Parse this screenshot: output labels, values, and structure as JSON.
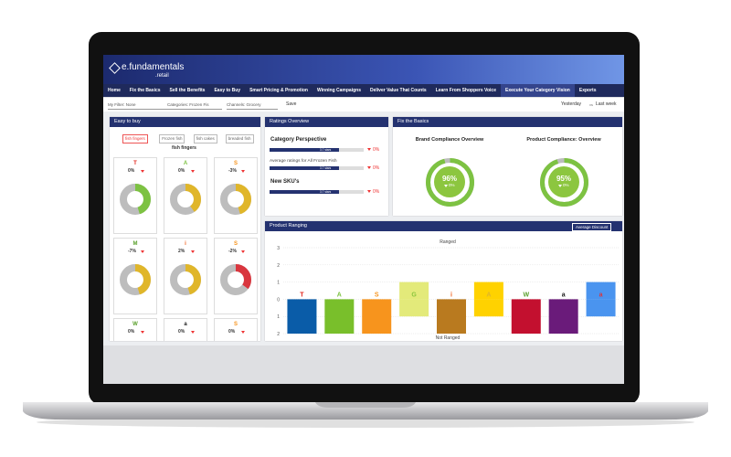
{
  "header": {
    "brand": "e.fundamentals",
    "sub": ".retail"
  },
  "nav": [
    "Home",
    "Fix the Basics",
    "Sell the Benefits",
    "Easy to Buy",
    "Smart Pricing & Promotion",
    "Winning Campaigns",
    "Deliver Value That Counts",
    "Learn From Shoppers Voice",
    "Execute Your Category Vision",
    "Exports"
  ],
  "filters": {
    "filter": "My Filter: None",
    "category": "Categories: Frozen Fis",
    "channel": "Channels: Grocery",
    "save": "Save",
    "period": "Yesterday",
    "vs": "vs",
    "compare": "Last week"
  },
  "easy_to_buy": {
    "title": "Easy to buy",
    "tabs": [
      "fish fingers",
      "Frozen fish",
      "fish cakes",
      "breaded fish"
    ],
    "search": "fish fingers",
    "cards": [
      {
        "icon": "T",
        "icon_color": "#e2231a",
        "change": "0%",
        "share": 45,
        "color": "#7dc242"
      },
      {
        "icon": "A",
        "icon_color": "#7dc242",
        "change": "0%",
        "share": 40,
        "color": "#e0b62a"
      },
      {
        "icon": "S",
        "icon_color": "#f7941d",
        "change": "-3%",
        "share": 45,
        "color": "#e0b62a"
      },
      {
        "icon": "M",
        "icon_color": "#5aa02c",
        "change": "-7%",
        "share": 45,
        "color": "#e0b62a"
      },
      {
        "icon": "i",
        "icon_color": "#f26522",
        "change": "2%",
        "share": 45,
        "color": "#e0b62a"
      },
      {
        "icon": "S",
        "icon_color": "#f7941d",
        "change": "-2%",
        "share": 35,
        "color": "#d9363e"
      },
      {
        "icon": "W",
        "icon_color": "#5aa02c",
        "change": "0%"
      },
      {
        "icon": "a",
        "icon_color": "#222222",
        "change": "0%"
      },
      {
        "icon": "S",
        "icon_color": "#f7941d",
        "change": "0%"
      }
    ]
  },
  "ratings": {
    "title": "Ratings Overview",
    "xlim": [
      0,
      5
    ],
    "sections": [
      {
        "heading": "Category Perspective",
        "rows": [
          {
            "stars": 3.7,
            "stars_label": "3.7 stars",
            "change": "0%"
          },
          {
            "caption": "Average ratings for All Frozen Fish",
            "stars": 3.7,
            "stars_label": "3.7 stars",
            "change": "0%"
          }
        ]
      },
      {
        "heading": "New SKU's",
        "rows": [
          {
            "stars": 3.7,
            "stars_label": "3.7 stars",
            "change": "0%"
          }
        ]
      }
    ]
  },
  "fix_the_basics": {
    "title": "Fix the Basics",
    "gauges": [
      {
        "title": "Brand Compliance Overview",
        "value": 96,
        "value_label": "96%",
        "change": "0%"
      },
      {
        "title": "Product Compliance: Overview",
        "value": 95,
        "value_label": "95%",
        "change": "0%"
      }
    ]
  },
  "product_ranging": {
    "title": "Product Ranging",
    "button": "Average Discount",
    "chart_data": {
      "type": "bar",
      "top_label": "Ranged",
      "bottom_label": "Not Ranged",
      "categories": [
        "T",
        "A",
        "S",
        "G",
        "i",
        "A",
        "W",
        "a",
        "a"
      ],
      "icon_colors": [
        "#e2231a",
        "#7dc242",
        "#f7941d",
        "#8cc63f",
        "#f26522",
        "#e0b62a",
        "#5aa02c",
        "#222222",
        "#d9363e"
      ],
      "ylim": [
        -2,
        3
      ],
      "yticks": [
        3,
        2,
        1,
        0,
        {
          "value": -1,
          "label": "1"
        },
        {
          "value": -2,
          "label": "2"
        }
      ],
      "grid": true,
      "series": [
        {
          "values": [
            0,
            0,
            0,
            1,
            0,
            1,
            0,
            0,
            1
          ],
          "colors": [
            "#0a5ca8",
            "#79bf2b",
            "#f7941d",
            "#e3ea7a",
            "#b97a1f",
            "#ffd200",
            "#c3102f",
            "#6a1b7a",
            "#4a94ef"
          ]
        },
        {
          "values": [
            -2,
            -2,
            -2,
            -1,
            -2,
            -1,
            -2,
            -2,
            -1
          ],
          "colors": [
            "#0a5ca8",
            "#79bf2b",
            "#f7941d",
            "#e3ea7a",
            "#b97a1f",
            "#ffd200",
            "#c3102f",
            "#6a1b7a",
            "#4a94ef"
          ]
        }
      ]
    }
  }
}
